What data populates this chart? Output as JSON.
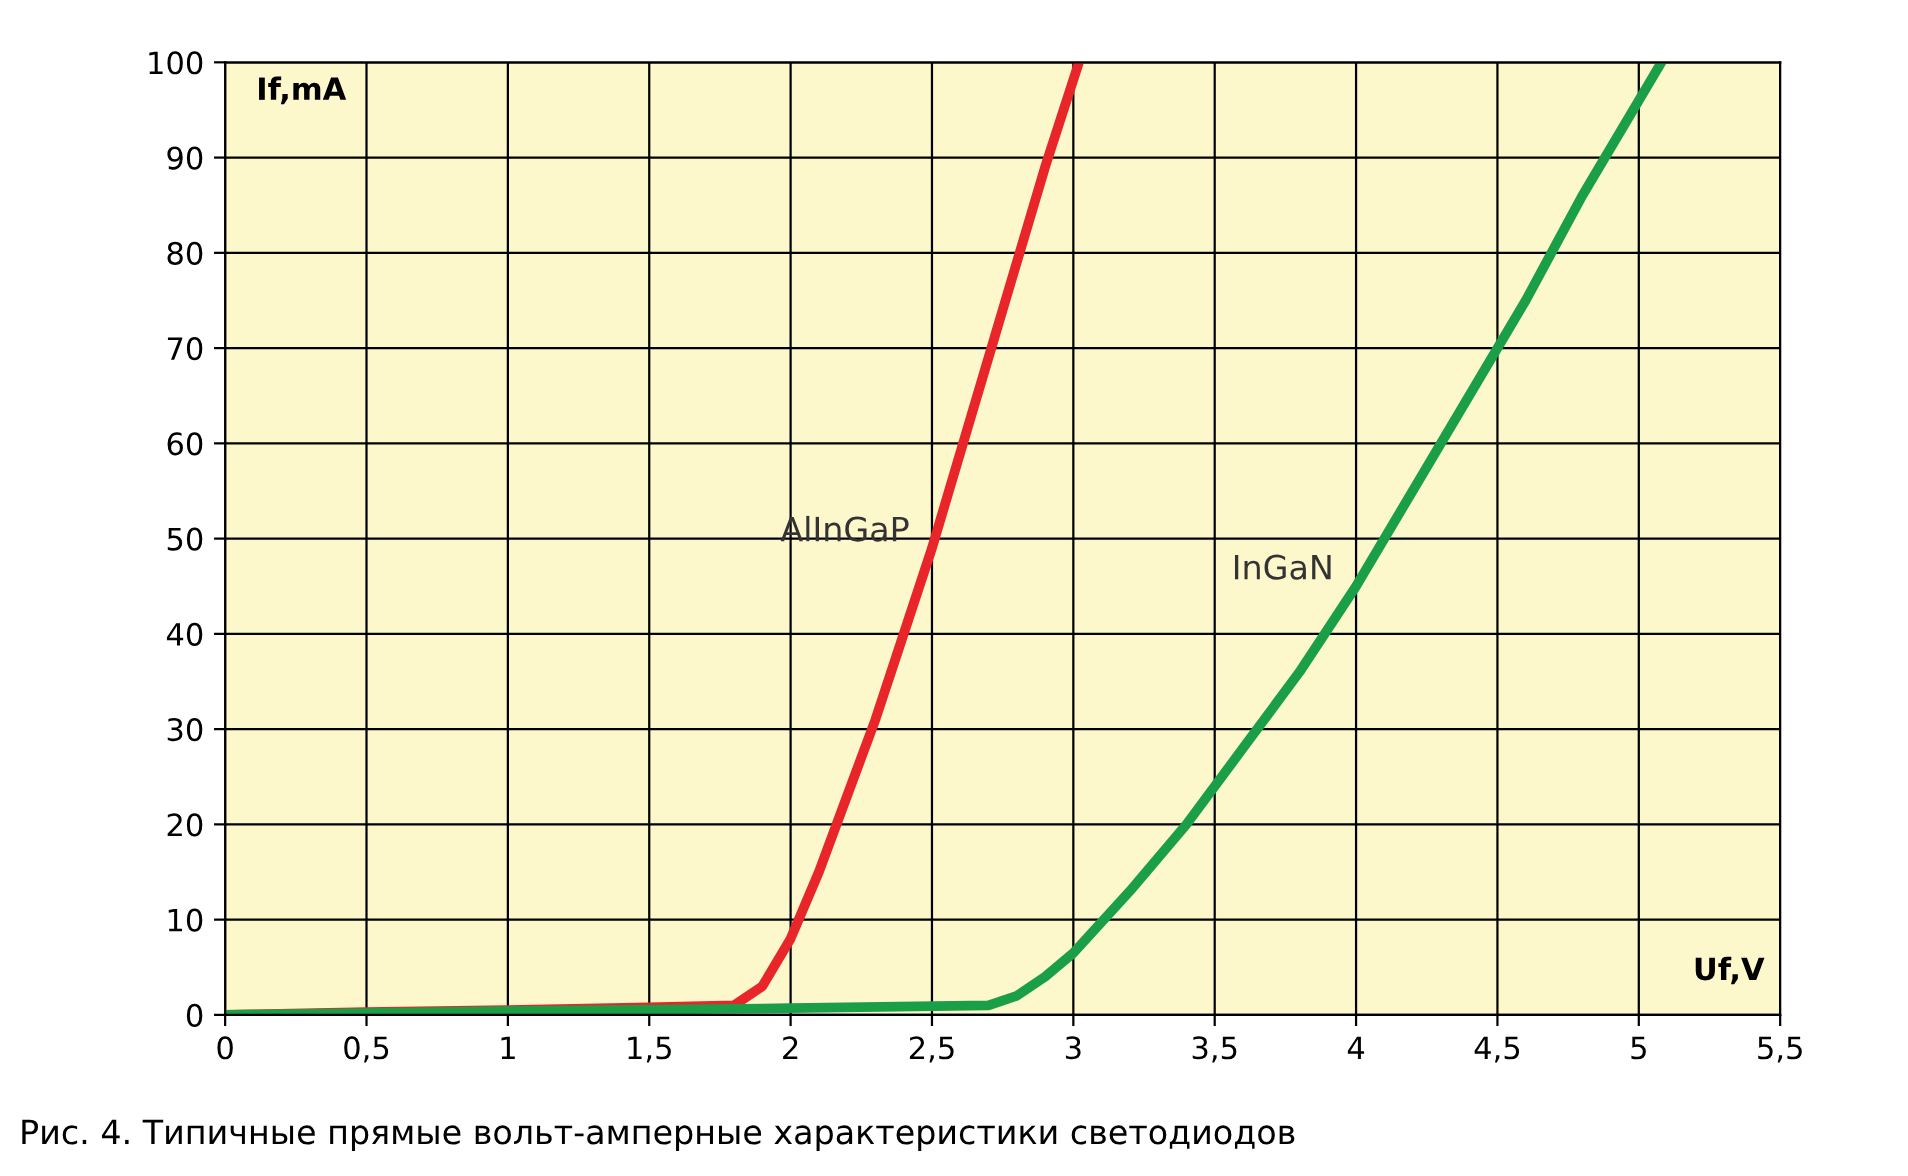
{
  "chart_data": {
    "type": "line",
    "title": "Рис. 4. Типичные прямые вольт-амперные характеристики светодиодов",
    "xlabel": "Uf,V",
    "ylabel": "If,mA",
    "xlim": [
      0,
      5.5
    ],
    "ylim": [
      0,
      100
    ],
    "xticks": [
      0,
      {
        "value": 0.5,
        "label": "0,5"
      },
      1,
      {
        "value": 1.5,
        "label": "1,5"
      },
      2,
      {
        "value": 2.5,
        "label": "2,5"
      },
      3,
      {
        "value": 3.5,
        "label": "3,5"
      },
      4,
      {
        "value": 4.5,
        "label": "4,5"
      },
      5,
      {
        "value": 5.5,
        "label": "5,5"
      }
    ],
    "yticks": [
      0,
      10,
      20,
      30,
      40,
      50,
      60,
      70,
      80,
      90,
      100
    ],
    "grid": true,
    "legend": false,
    "series": [
      {
        "name": "AlInGaP",
        "color": "#e8262a",
        "x": [
          0,
          0.5,
          1,
          1.5,
          1.8,
          1.9,
          2.0,
          2.1,
          2.2,
          2.3,
          2.4,
          2.5,
          2.6,
          2.7,
          2.8,
          2.9,
          3.02
        ],
        "values": [
          0,
          0.3,
          0.5,
          0.8,
          1,
          3,
          8,
          15,
          23,
          31,
          40,
          49,
          59,
          69,
          79,
          89,
          100
        ]
      },
      {
        "name": "InGaN",
        "color": "#1a9e48",
        "x": [
          0,
          1,
          2,
          2.7,
          2.8,
          2.9,
          3.0,
          3.2,
          3.4,
          3.6,
          3.8,
          4.0,
          4.2,
          4.4,
          4.6,
          4.8,
          5.0,
          5.08
        ],
        "values": [
          0,
          0.4,
          0.7,
          1,
          2,
          4,
          6.5,
          13,
          20,
          28,
          36,
          45,
          55,
          65,
          75,
          86,
          96,
          100
        ]
      }
    ]
  }
}
